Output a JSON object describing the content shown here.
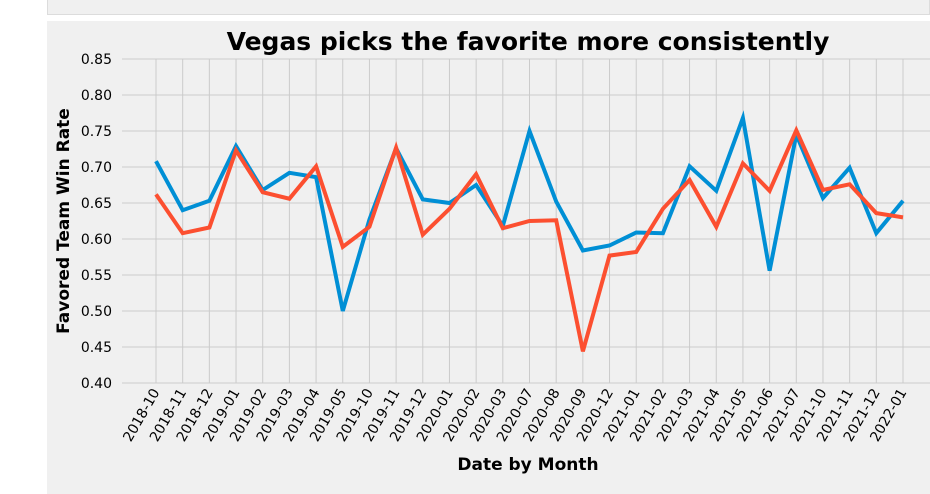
{
  "chart_data": {
    "type": "line",
    "title": "Vegas picks the favorite more consistently",
    "xlabel": "Date by Month",
    "ylabel": "Favored Team Win Rate",
    "ylim": [
      0.4,
      0.85
    ],
    "yticks": [
      "0.40",
      "0.45",
      "0.50",
      "0.55",
      "0.60",
      "0.65",
      "0.70",
      "0.75",
      "0.80",
      "0.85"
    ],
    "grid": true,
    "categories": [
      "2018-10",
      "2018-11",
      "2018-12",
      "2019-01",
      "2019-02",
      "2019-03",
      "2019-04",
      "2019-05",
      "2019-10",
      "2019-11",
      "2019-12",
      "2020-01",
      "2020-02",
      "2020-03",
      "2020-07",
      "2020-08",
      "2020-09",
      "2020-12",
      "2021-01",
      "2021-02",
      "2021-03",
      "2021-04",
      "2021-05",
      "2021-06",
      "2021-07",
      "2021-10",
      "2021-11",
      "2021-12",
      "2022-01"
    ],
    "series": [
      {
        "color": "#008fd5",
        "values": [
          0.708,
          0.64,
          0.653,
          0.729,
          0.668,
          0.692,
          0.686,
          0.5,
          0.627,
          0.726,
          0.655,
          0.65,
          0.675,
          0.618,
          0.75,
          0.652,
          0.584,
          0.591,
          0.609,
          0.608,
          0.701,
          0.667,
          0.768,
          0.556,
          0.745,
          0.657,
          0.699,
          0.608,
          0.653
        ]
      },
      {
        "color": "#fc4f30",
        "values": [
          0.662,
          0.608,
          0.616,
          0.723,
          0.665,
          0.656,
          0.701,
          0.589,
          0.617,
          0.727,
          0.606,
          0.642,
          0.69,
          0.615,
          0.625,
          0.626,
          0.444,
          0.577,
          0.582,
          0.642,
          0.682,
          0.617,
          0.705,
          0.667,
          0.751,
          0.668,
          0.676,
          0.636,
          0.63
        ]
      }
    ]
  }
}
